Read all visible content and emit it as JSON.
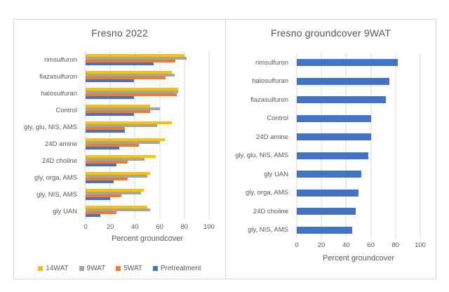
{
  "colors": {
    "bar_yellow": "#FFC000",
    "bar_gray": "#A5A5A5",
    "bar_orange": "#ED7D31",
    "bar_blue": "#4472C4",
    "gridline": "#DADADA",
    "text": "#595959",
    "panel_border": "#D8D8D8"
  },
  "chart_data": [
    {
      "type": "bar",
      "orientation": "horizontal",
      "title": "Fresno 2022",
      "xlabel": "Percent groundcover",
      "xlim": [
        0,
        100
      ],
      "xticks": [
        0,
        20,
        40,
        60,
        80,
        100
      ],
      "grid": true,
      "legend_position": "bottom",
      "categories": [
        "rimsulfuron",
        "flazasulfuron",
        "halosulfuran",
        "Control",
        "gly, glu, NIS, AMS",
        "24D amine",
        "24D choline",
        "gly, orga, AMS",
        "gly, NIS, AMS",
        "gly UAN"
      ],
      "series": [
        {
          "name": "14WAT",
          "color": "#FFC000",
          "values": [
            80,
            70,
            75,
            52,
            70,
            64,
            57,
            52,
            47,
            50
          ]
        },
        {
          "name": "9WAT",
          "color": "#A5A5A5",
          "values": [
            82,
            72,
            75,
            60,
            58,
            60,
            48,
            50,
            45,
            52
          ]
        },
        {
          "name": "5WAT",
          "color": "#ED7D31",
          "values": [
            73,
            65,
            74,
            52,
            32,
            43,
            34,
            34,
            29,
            25
          ]
        },
        {
          "name": "Pretreatment",
          "color": "#4472C4",
          "values": [
            55,
            39,
            39,
            39,
            32,
            27,
            25,
            23,
            20,
            12
          ]
        }
      ]
    },
    {
      "type": "bar",
      "orientation": "horizontal",
      "title": "Fresno groundcover 9WAT",
      "xlabel": "Percent groundcover",
      "xlim": [
        0,
        100
      ],
      "xticks": [
        0,
        20,
        40,
        60,
        80,
        100
      ],
      "grid": true,
      "legend_position": "none",
      "categories": [
        "rimsulfuron",
        "halosulfuran",
        "flazasulfuron",
        "Control",
        "24D amine",
        "gly, glu, NIS, AMS",
        "gly UAN",
        "gly, orga, AMS",
        "24D choline",
        "gly, NIS, AMS"
      ],
      "series": [
        {
          "name": "9WAT",
          "color": "#4472C4",
          "values": [
            82,
            75,
            72,
            60,
            60,
            58,
            52,
            50,
            48,
            45
          ]
        }
      ]
    }
  ]
}
